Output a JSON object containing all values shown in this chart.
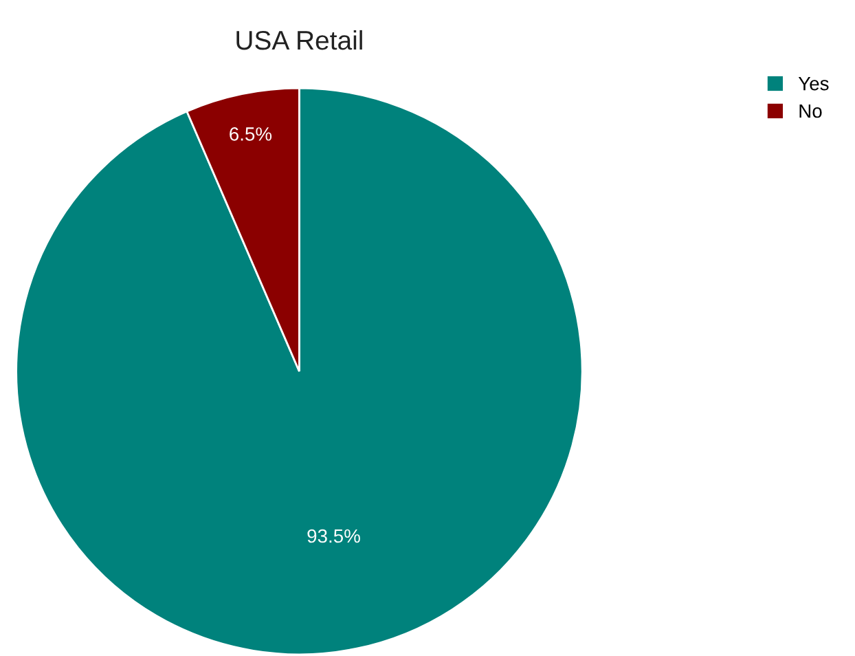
{
  "chart_data": {
    "type": "pie",
    "title": "USA Retail",
    "categories": [
      "Yes",
      "No"
    ],
    "values": [
      93.5,
      6.5
    ],
    "colors": [
      "#00827c",
      "#8b0000"
    ],
    "value_labels": [
      "93.5%",
      "6.5%"
    ],
    "legend": "top right"
  }
}
